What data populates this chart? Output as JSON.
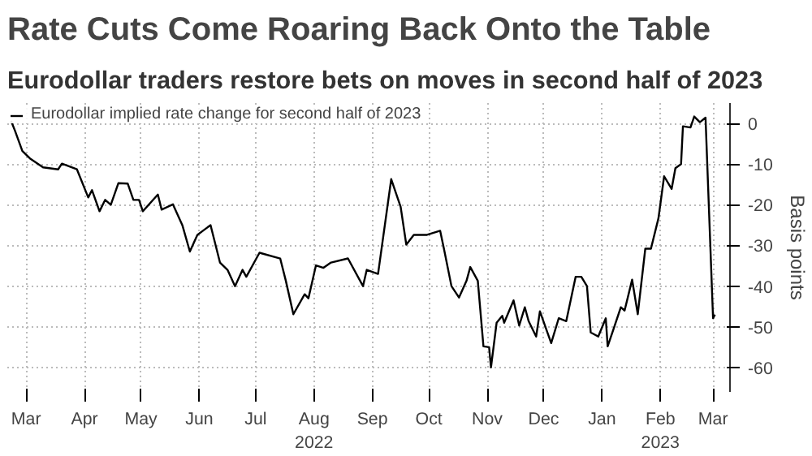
{
  "chart_data": {
    "type": "line",
    "title": "Rate Cuts Come Roaring Back Onto the Table",
    "subtitle": "Eurodollar traders restore bets on moves in second half of 2023",
    "ylabel": "Basis points",
    "legend": "top left",
    "grid": true,
    "line_style": "solid",
    "xlim": [
      "2022-02-19",
      "2023-03-10"
    ],
    "xticks": [
      {
        "value": "2022-03-01",
        "label": "Mar"
      },
      {
        "value": "2022-04-01",
        "label": "Apr"
      },
      {
        "value": "2022-05-01",
        "label": "May"
      },
      {
        "value": "2022-06-01",
        "label": "Jun"
      },
      {
        "value": "2022-07-01",
        "label": "Jul"
      },
      {
        "value": "2022-08-01",
        "label": "Aug\n2022"
      },
      {
        "value": "2022-09-01",
        "label": "Sep"
      },
      {
        "value": "2022-10-01",
        "label": "Oct"
      },
      {
        "value": "2022-11-01",
        "label": "Nov"
      },
      {
        "value": "2022-12-01",
        "label": "Dec"
      },
      {
        "value": "2023-01-01",
        "label": "Jan"
      },
      {
        "value": "2023-02-01",
        "label": "Feb\n2023"
      },
      {
        "value": "2023-03-01",
        "label": "Mar"
      }
    ],
    "ylim": [
      -66,
      5
    ],
    "yticks": [
      0,
      -10,
      -20,
      -30,
      -40,
      -50,
      -60
    ],
    "x": [
      "2022-02-21",
      "2022-02-23",
      "2022-02-27",
      "2022-03-03",
      "2022-03-10",
      "2022-03-18",
      "2022-03-20",
      "2022-03-28",
      "2022-04-03",
      "2022-04-05",
      "2022-04-09",
      "2022-04-12",
      "2022-04-15",
      "2022-04-19",
      "2022-04-24",
      "2022-04-27",
      "2022-04-30",
      "2022-05-02",
      "2022-05-10",
      "2022-05-12",
      "2022-05-18",
      "2022-05-23",
      "2022-05-27",
      "2022-05-31",
      "2022-06-07",
      "2022-06-12",
      "2022-06-16",
      "2022-06-20",
      "2022-06-24",
      "2022-06-26",
      "2022-07-03",
      "2022-07-14",
      "2022-07-17",
      "2022-07-21",
      "2022-07-27",
      "2022-07-29",
      "2022-08-02",
      "2022-08-06",
      "2022-08-10",
      "2022-08-19",
      "2022-08-27",
      "2022-08-29",
      "2022-09-04",
      "2022-09-11",
      "2022-09-14",
      "2022-09-16",
      "2022-09-19",
      "2022-09-23",
      "2022-09-30",
      "2022-10-07",
      "2022-10-09",
      "2022-10-13",
      "2022-10-17",
      "2022-10-21",
      "2022-10-23",
      "2022-10-27",
      "2022-10-30",
      "2022-11-02",
      "2022-11-03",
      "2022-11-06",
      "2022-11-09",
      "2022-11-10",
      "2022-11-15",
      "2022-11-18",
      "2022-11-21",
      "2022-11-23",
      "2022-11-27",
      "2022-11-29",
      "2022-12-03",
      "2022-12-05",
      "2022-12-09",
      "2022-12-13",
      "2022-12-18",
      "2022-12-21",
      "2022-12-24",
      "2022-12-26",
      "2022-12-30",
      "2023-01-03",
      "2023-01-04",
      "2023-01-07",
      "2023-01-11",
      "2023-01-13",
      "2023-01-17",
      "2023-01-20",
      "2023-01-24",
      "2023-01-27",
      "2023-01-31",
      "2023-02-03",
      "2023-02-07",
      "2023-02-09",
      "2023-02-12",
      "2023-02-13",
      "2023-02-17",
      "2023-02-19",
      "2023-02-22",
      "2023-02-25",
      "2023-03-01",
      "2023-03-02"
    ],
    "series": [
      {
        "name": "Eurodollar implied rate change for second half of 2023",
        "color": "#000000",
        "values": [
          0.6,
          -1.7,
          -6.8,
          -8.6,
          -10.8,
          -11.3,
          -9.9,
          -11.3,
          -18.2,
          -16.4,
          -21.6,
          -18.8,
          -20,
          -14.7,
          -14.8,
          -18.8,
          -18.8,
          -21.6,
          -17.5,
          -21.2,
          -19.9,
          -25,
          -31.5,
          -27.4,
          -25,
          -34.2,
          -36,
          -40,
          -36,
          -37.7,
          -31.8,
          -33.2,
          -38.7,
          -46.9,
          -42,
          -43,
          -34.9,
          -35.5,
          -34.2,
          -33.2,
          -40,
          -36,
          -37,
          -13.7,
          -17.8,
          -20.5,
          -29.8,
          -27.4,
          -27.4,
          -26.4,
          -30.8,
          -40,
          -42.8,
          -38.7,
          -35.3,
          -38.7,
          -54.8,
          -55,
          -60,
          -49,
          -47.3,
          -49,
          -43.5,
          -49.7,
          -45.2,
          -48.6,
          -52.4,
          -46.2,
          -51.4,
          -54,
          -47.9,
          -48.6,
          -37.7,
          -37.7,
          -40,
          -51.4,
          -52.4,
          -47.9,
          -54.8,
          -50.7,
          -45.2,
          -46,
          -38.4,
          -46.9,
          -30.8,
          -30.8,
          -23.3,
          -13,
          -16.1,
          -11,
          -10,
          -0.7,
          -1,
          1.7,
          0.3,
          1.4,
          -47.9,
          -47
        ]
      }
    ]
  }
}
